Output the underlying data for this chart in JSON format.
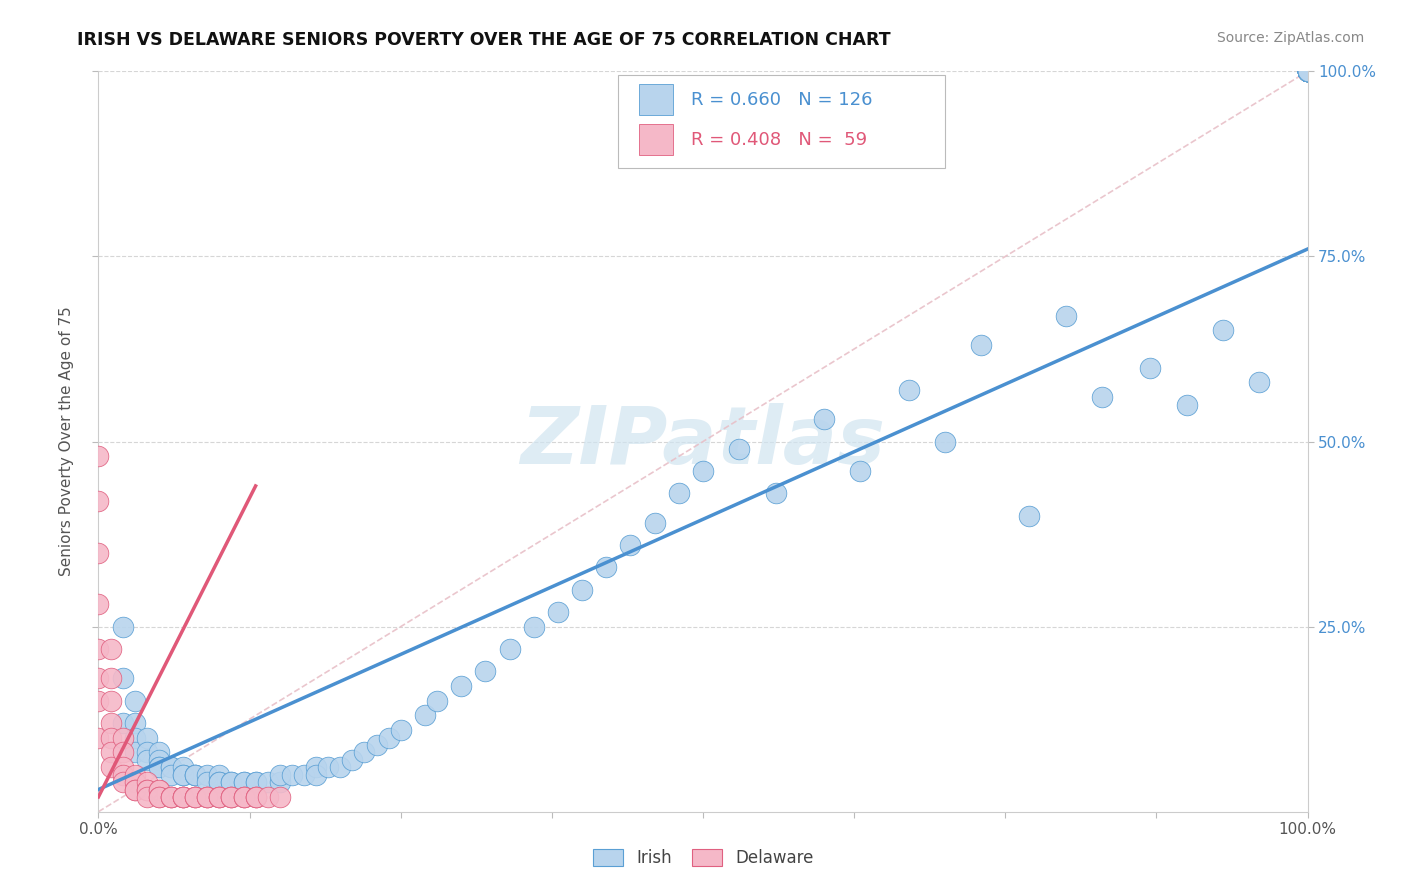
{
  "title": "IRISH VS DELAWARE SENIORS POVERTY OVER THE AGE OF 75 CORRELATION CHART",
  "source": "Source: ZipAtlas.com",
  "ylabel": "Seniors Poverty Over the Age of 75",
  "xlim": [
    0.0,
    1.0
  ],
  "ylim": [
    0.0,
    1.0
  ],
  "legend_irish_R": "R = 0.660",
  "legend_irish_N": "N = 126",
  "legend_delaware_R": "R = 0.408",
  "legend_delaware_N": "N =  59",
  "irish_fill": "#b8d4ed",
  "irish_edge": "#5a9fd4",
  "delaware_fill": "#f5b8c8",
  "delaware_edge": "#e06080",
  "irish_line_color": "#4a90d0",
  "delaware_line_color": "#e05878",
  "diag_color": "#e8c0c8",
  "watermark_color": "#d0e4f0",
  "irish_x": [
    0.02,
    0.02,
    0.02,
    0.03,
    0.03,
    0.03,
    0.03,
    0.04,
    0.04,
    0.04,
    0.05,
    0.05,
    0.05,
    0.05,
    0.06,
    0.06,
    0.06,
    0.07,
    0.07,
    0.07,
    0.08,
    0.08,
    0.08,
    0.09,
    0.09,
    0.1,
    0.1,
    0.1,
    0.11,
    0.11,
    0.12,
    0.12,
    0.13,
    0.13,
    0.14,
    0.15,
    0.15,
    0.16,
    0.17,
    0.18,
    0.18,
    0.19,
    0.2,
    0.21,
    0.22,
    0.23,
    0.24,
    0.25,
    0.27,
    0.28,
    0.3,
    0.32,
    0.34,
    0.36,
    0.38,
    0.4,
    0.42,
    0.44,
    0.46,
    0.48,
    0.5,
    0.53,
    0.56,
    0.6,
    0.63,
    0.67,
    0.7,
    0.73,
    0.77,
    0.8,
    0.83,
    0.87,
    0.9,
    0.93,
    0.96,
    1.0,
    1.0,
    1.0,
    1.0,
    1.0,
    1.0,
    1.0,
    1.0,
    1.0,
    1.0,
    1.0,
    1.0,
    1.0,
    1.0,
    1.0,
    1.0,
    1.0,
    1.0,
    1.0,
    1.0,
    1.0,
    1.0,
    1.0,
    1.0,
    1.0,
    1.0,
    1.0,
    1.0,
    1.0,
    1.0,
    1.0,
    1.0,
    1.0,
    1.0,
    1.0,
    1.0,
    1.0,
    1.0,
    1.0,
    1.0,
    1.0,
    1.0,
    1.0,
    1.0,
    1.0,
    1.0,
    1.0,
    1.0,
    1.0,
    1.0,
    1.0
  ],
  "irish_y": [
    0.25,
    0.18,
    0.12,
    0.15,
    0.12,
    0.1,
    0.08,
    0.1,
    0.08,
    0.07,
    0.08,
    0.07,
    0.06,
    0.06,
    0.06,
    0.06,
    0.05,
    0.06,
    0.05,
    0.05,
    0.05,
    0.05,
    0.05,
    0.05,
    0.04,
    0.05,
    0.04,
    0.04,
    0.04,
    0.04,
    0.04,
    0.04,
    0.04,
    0.04,
    0.04,
    0.04,
    0.05,
    0.05,
    0.05,
    0.06,
    0.05,
    0.06,
    0.06,
    0.07,
    0.08,
    0.09,
    0.1,
    0.11,
    0.13,
    0.15,
    0.17,
    0.19,
    0.22,
    0.25,
    0.27,
    0.3,
    0.33,
    0.36,
    0.39,
    0.43,
    0.46,
    0.49,
    0.43,
    0.53,
    0.46,
    0.57,
    0.5,
    0.63,
    0.4,
    0.67,
    0.56,
    0.6,
    0.55,
    0.65,
    0.58,
    1.0,
    1.0,
    1.0,
    1.0,
    1.0,
    1.0,
    1.0,
    1.0,
    1.0,
    1.0,
    1.0,
    1.0,
    1.0,
    1.0,
    1.0,
    1.0,
    1.0,
    1.0,
    1.0,
    1.0,
    1.0,
    1.0,
    1.0,
    1.0,
    1.0,
    1.0,
    1.0,
    1.0,
    1.0,
    1.0,
    1.0,
    1.0,
    1.0,
    1.0,
    1.0,
    1.0,
    1.0,
    1.0,
    1.0,
    1.0,
    1.0,
    1.0,
    1.0,
    1.0,
    1.0,
    1.0,
    1.0,
    1.0,
    1.0,
    1.0,
    1.0
  ],
  "delaware_x": [
    0.0,
    0.0,
    0.0,
    0.0,
    0.0,
    0.0,
    0.0,
    0.0,
    0.01,
    0.01,
    0.01,
    0.01,
    0.01,
    0.01,
    0.01,
    0.02,
    0.02,
    0.02,
    0.02,
    0.02,
    0.03,
    0.03,
    0.03,
    0.03,
    0.04,
    0.04,
    0.04,
    0.04,
    0.05,
    0.05,
    0.05,
    0.05,
    0.06,
    0.06,
    0.06,
    0.07,
    0.07,
    0.07,
    0.07,
    0.08,
    0.08,
    0.08,
    0.09,
    0.09,
    0.09,
    0.1,
    0.1,
    0.1,
    0.11,
    0.11,
    0.11,
    0.12,
    0.12,
    0.12,
    0.13,
    0.13,
    0.13,
    0.14,
    0.15
  ],
  "delaware_y": [
    0.48,
    0.42,
    0.35,
    0.28,
    0.22,
    0.18,
    0.15,
    0.1,
    0.22,
    0.18,
    0.15,
    0.12,
    0.1,
    0.08,
    0.06,
    0.1,
    0.08,
    0.06,
    0.05,
    0.04,
    0.05,
    0.04,
    0.03,
    0.03,
    0.04,
    0.03,
    0.03,
    0.02,
    0.03,
    0.03,
    0.02,
    0.02,
    0.02,
    0.02,
    0.02,
    0.02,
    0.02,
    0.02,
    0.02,
    0.02,
    0.02,
    0.02,
    0.02,
    0.02,
    0.02,
    0.02,
    0.02,
    0.02,
    0.02,
    0.02,
    0.02,
    0.02,
    0.02,
    0.02,
    0.02,
    0.02,
    0.02,
    0.02,
    0.02
  ],
  "irish_line_x0": 0.0,
  "irish_line_x1": 1.0,
  "irish_line_y0": 0.03,
  "irish_line_y1": 0.76,
  "del_line_x0": 0.0,
  "del_line_x1": 0.13,
  "del_line_y0": 0.02,
  "del_line_y1": 0.44
}
